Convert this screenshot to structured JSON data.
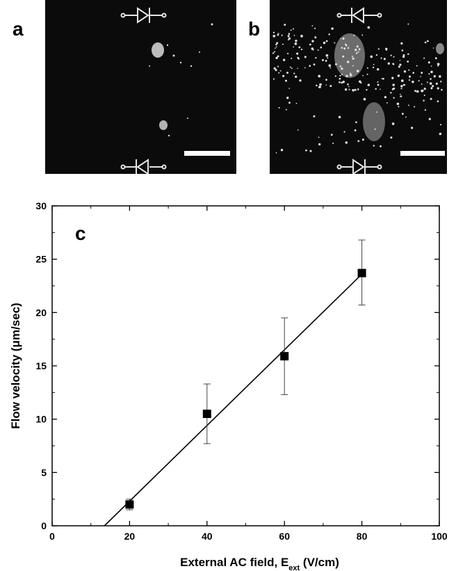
{
  "panels": {
    "a": {
      "letter": "a"
    },
    "b": {
      "letter": "b"
    },
    "c": {
      "letter": "c"
    }
  },
  "chart_data": {
    "type": "scatter",
    "title": "",
    "xlabel": "External AC field, E",
    "xlabel_sub": "ext",
    "xlabel_suffix": " (V/cm)",
    "ylabel": "Flow velocity (μm/sec)",
    "xlim": [
      0,
      100
    ],
    "ylim": [
      0,
      30
    ],
    "xticks": [
      0,
      20,
      40,
      60,
      80,
      100
    ],
    "yticks": [
      0,
      5,
      10,
      15,
      20,
      25,
      30
    ],
    "grid": false,
    "series": [
      {
        "points": [
          {
            "x": 20,
            "y": 2.0,
            "err_low": 1.5,
            "err_high": 2.5
          },
          {
            "x": 40,
            "y": 10.5,
            "err_low": 7.7,
            "err_high": 13.3
          },
          {
            "x": 60,
            "y": 15.9,
            "err_low": 12.3,
            "err_high": 19.5
          },
          {
            "x": 80,
            "y": 23.7,
            "err_low": 20.7,
            "err_high": 26.8
          }
        ]
      }
    ],
    "fit_line": {
      "x": [
        13.5,
        80
      ],
      "y": [
        0,
        23.6
      ]
    }
  }
}
